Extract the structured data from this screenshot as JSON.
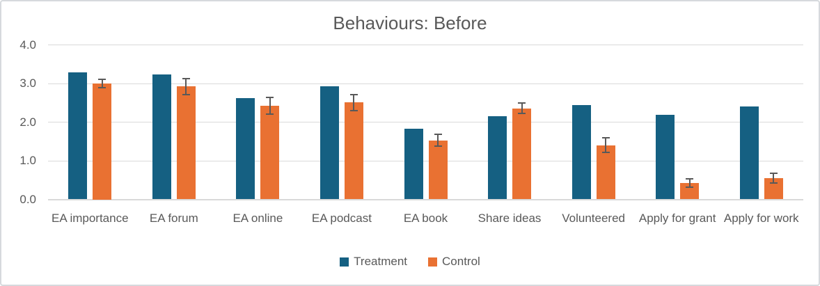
{
  "chart_data": {
    "type": "bar",
    "title": "Behaviours: Before",
    "categories": [
      "EA importance",
      "EA forum",
      "EA online",
      "EA podcast",
      "EA book",
      "Share ideas",
      "Volunteered",
      "Apply for grant",
      "Apply for work"
    ],
    "series": [
      {
        "name": "Treatment",
        "color": "#156082",
        "values": [
          3.28,
          3.24,
          2.63,
          2.93,
          1.83,
          2.15,
          2.45,
          2.19,
          2.41
        ]
      },
      {
        "name": "Control",
        "color": "#E97132",
        "values": [
          3.0,
          2.92,
          2.42,
          2.51,
          1.53,
          2.36,
          1.4,
          0.42,
          0.55
        ],
        "error_bars": [
          0.11,
          0.2,
          0.22,
          0.21,
          0.15,
          0.14,
          0.19,
          0.11,
          0.12
        ]
      }
    ],
    "ylim": [
      0,
      4
    ],
    "yticks": [
      0,
      1,
      2,
      3,
      4
    ],
    "ytick_labels": [
      "0.0",
      "1.0",
      "2.0",
      "3.0",
      "4.0"
    ],
    "grid": true,
    "legend_position": "bottom",
    "error_bar_color": "#595959",
    "text_color": "#595959",
    "gridline_color": "#D9D9D9"
  }
}
